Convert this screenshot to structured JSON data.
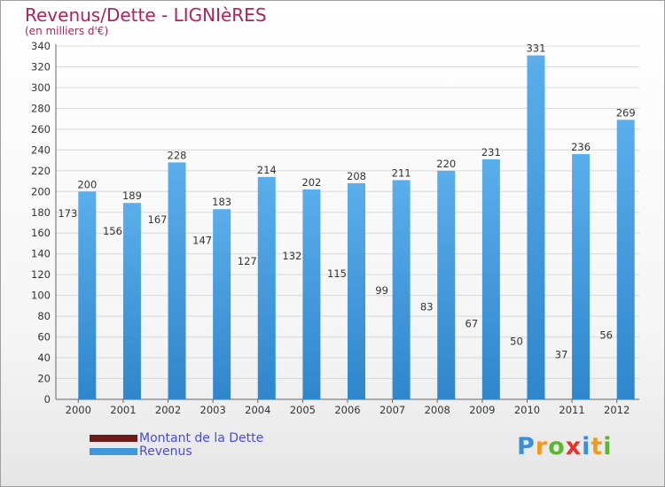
{
  "header": {
    "title": "Revenus/Dette - LIGNIèRES",
    "subtitle": "(en milliers d'€)"
  },
  "legend": {
    "debt_label": "Montant de la Dette",
    "revenue_label": "Revenus"
  },
  "logo": {
    "letters": [
      "P",
      "r",
      "o",
      "x",
      "i",
      "t",
      "i"
    ],
    "colors": [
      "#3a8fd9",
      "#f29a1a",
      "#5bb82e",
      "#e8322a",
      "#3a8fd9",
      "#f29a1a",
      "#5bb82e"
    ]
  },
  "colors": {
    "debt": "#6e1a1a",
    "revenue": "#3f97dc",
    "title": "#b0235a",
    "legend_text": "#4a4adb"
  },
  "chart_data": {
    "type": "bar",
    "categories": [
      "2000",
      "2001",
      "2002",
      "2003",
      "2004",
      "2005",
      "2006",
      "2007",
      "2008",
      "2009",
      "2010",
      "2011",
      "2012"
    ],
    "series": [
      {
        "name": "Montant de la Dette",
        "values": [
          173,
          156,
          167,
          147,
          127,
          132,
          115,
          99,
          83,
          67,
          50,
          37,
          56
        ]
      },
      {
        "name": "Revenus",
        "values": [
          200,
          189,
          228,
          183,
          214,
          202,
          208,
          211,
          220,
          231,
          331,
          236,
          269
        ]
      }
    ],
    "ylim": [
      0,
      340
    ],
    "yticks": [
      0,
      20,
      40,
      60,
      80,
      100,
      120,
      140,
      160,
      180,
      200,
      220,
      240,
      260,
      280,
      300,
      320,
      340
    ],
    "grid": true,
    "legend_position": "bottom-left"
  }
}
